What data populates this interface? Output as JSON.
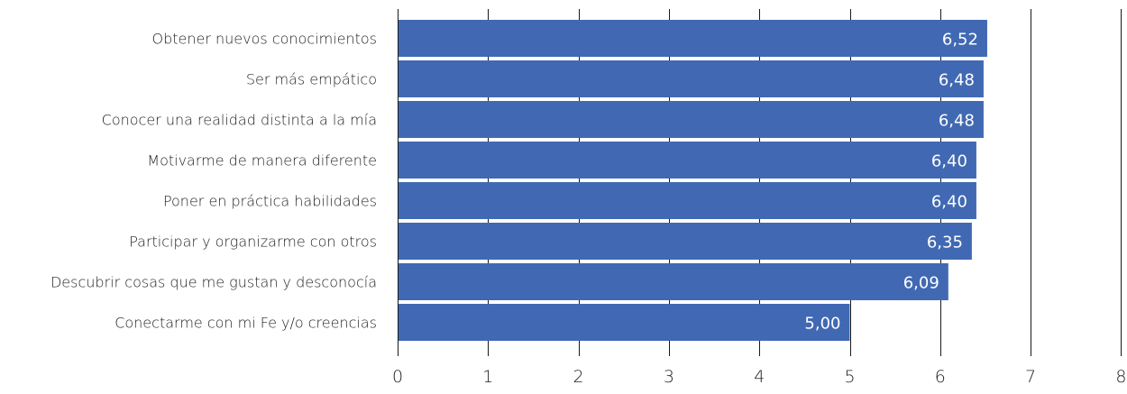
{
  "chart_data": {
    "type": "bar",
    "orientation": "horizontal",
    "categories": [
      "Obtener nuevos conocimientos",
      "Ser más empático ",
      "Conocer una realidad distinta a la mía",
      "Motivarme de manera diferente",
      "Poner en práctica habilidades",
      "Participar y organizarme con otros",
      "Descubrir cosas que me gustan y desconocía",
      "Conectarme con mi Fe y/o creencias"
    ],
    "values": [
      6.52,
      6.48,
      6.48,
      6.4,
      6.4,
      6.35,
      6.09,
      5.0
    ],
    "value_labels": [
      "6,52",
      "6,48",
      "6,48",
      "6,40",
      "6,40",
      "6,35",
      "6,09",
      "5,00"
    ],
    "xlim": [
      0,
      8
    ],
    "x_ticks": [
      0,
      1,
      2,
      3,
      4,
      5,
      6,
      7,
      8
    ],
    "x_tick_labels": [
      "0",
      "1",
      "2",
      "3",
      "4",
      "5",
      "6",
      "7",
      "8"
    ],
    "bar_color": "#4169b3",
    "grid": "vertical",
    "legend": "none",
    "title": "",
    "xlabel": "",
    "ylabel": ""
  }
}
